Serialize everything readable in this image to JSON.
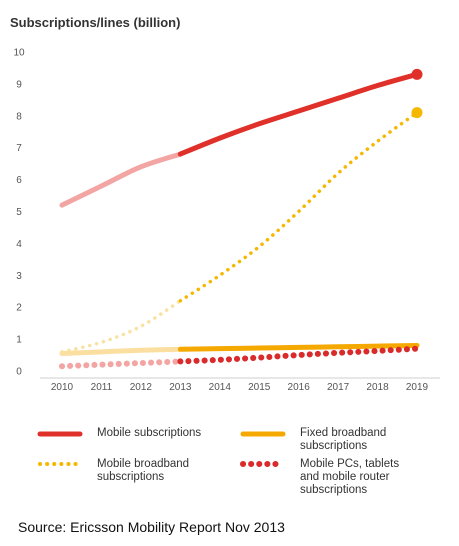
{
  "chart_data": {
    "type": "line",
    "ylabel": "Subscriptions/lines (billion)",
    "ylim": [
      0,
      10
    ],
    "yticks": [
      "0",
      "1",
      "2",
      "3",
      "4",
      "5",
      "6",
      "7",
      "8",
      "9",
      "10"
    ],
    "x": [
      2010,
      2011,
      2012,
      2013,
      2014,
      2015,
      2016,
      2017,
      2018,
      2019
    ],
    "xticks": [
      "2010",
      "2011",
      "2012",
      "2013",
      "2014",
      "2015",
      "2016",
      "2017",
      "2018",
      "2019"
    ],
    "historical_until": 2013,
    "series": [
      {
        "name": "Mobile subscriptions",
        "color": "#e0302a",
        "light_color": "#f2a5a3",
        "style": "solid",
        "values": [
          5.2,
          5.8,
          6.4,
          6.8,
          7.3,
          7.75,
          8.15,
          8.55,
          8.95,
          9.3
        ]
      },
      {
        "name": "Fixed broadband subscriptions",
        "color": "#f5a800",
        "light_color": "#fbdfa0",
        "style": "solid",
        "values": [
          0.55,
          0.6,
          0.65,
          0.68,
          0.7,
          0.72,
          0.74,
          0.76,
          0.78,
          0.8
        ]
      },
      {
        "name": "Mobile broadband subscriptions",
        "color": "#f5b800",
        "light_color": "#f8e2a0",
        "style": "dotted",
        "values": [
          0.6,
          0.9,
          1.4,
          2.2,
          3.0,
          3.9,
          5.0,
          6.2,
          7.2,
          8.1
        ]
      },
      {
        "name": "Mobile PCs, tablets and mobile router subscriptions",
        "color": "#d92b2b",
        "light_color": "#f2a5a3",
        "style": "dotted-large",
        "values": [
          0.15,
          0.2,
          0.25,
          0.3,
          0.35,
          0.42,
          0.5,
          0.57,
          0.63,
          0.7
        ]
      }
    ]
  },
  "legend": [
    {
      "label_lines": [
        "Mobile subscriptions"
      ]
    },
    {
      "label_lines": [
        "Fixed broadband",
        "subscriptions"
      ]
    },
    {
      "label_lines": [
        "Mobile broadband",
        "subscriptions"
      ]
    },
    {
      "label_lines": [
        "Mobile PCs, tablets",
        "and mobile router",
        "subscriptions"
      ]
    }
  ],
  "source": "Source:  Ericsson Mobility Report Nov 2013"
}
